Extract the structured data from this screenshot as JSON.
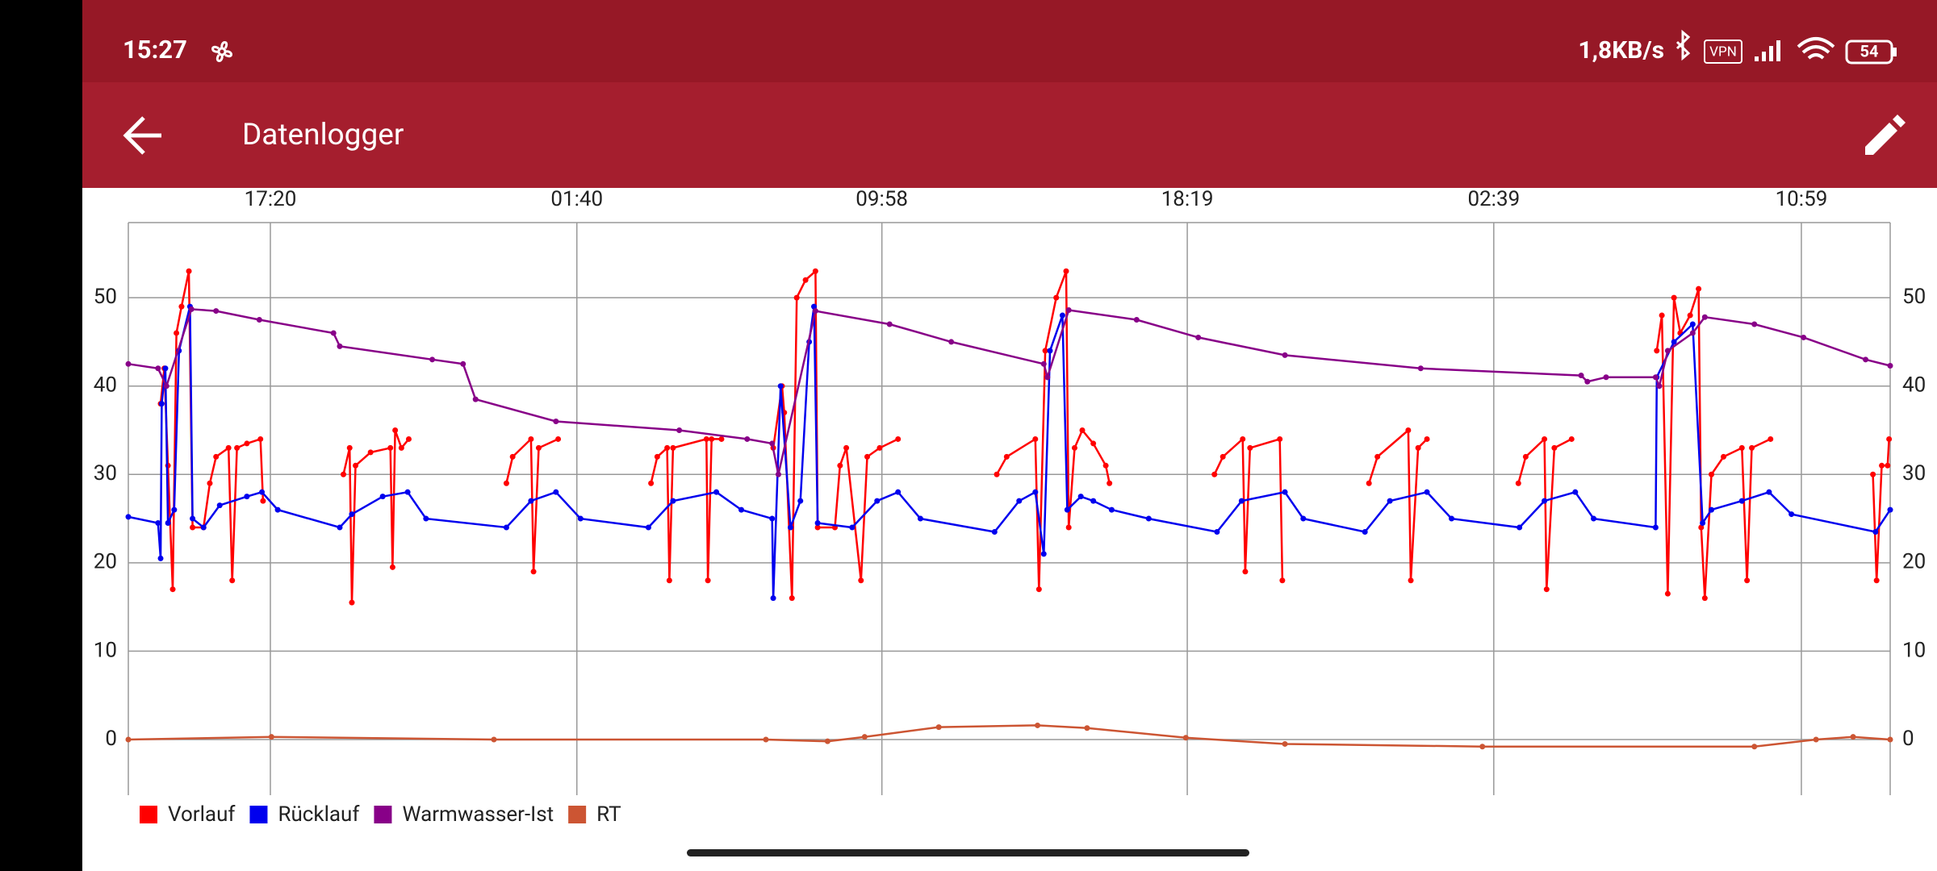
{
  "status_bar": {
    "time": "15:27",
    "speed": "1,8KB/s",
    "vpn": "VPN",
    "battery": "54"
  },
  "app_bar": {
    "title": "Datenlogger"
  },
  "chart_data": {
    "type": "line",
    "grid": true,
    "legend": "bottom-left",
    "xlim": [
      0,
      48
    ],
    "ylim": [
      -6.3,
      58.5
    ],
    "xticks": [
      {
        "value": 3.87,
        "label": "17:20"
      },
      {
        "value": 12.22,
        "label": "01:40"
      },
      {
        "value": 20.53,
        "label": "09:58"
      },
      {
        "value": 28.85,
        "label": "18:19"
      },
      {
        "value": 37.2,
        "label": "02:39"
      },
      {
        "value": 45.58,
        "label": "10:59"
      }
    ],
    "yticks": [
      0,
      10,
      20,
      30,
      40,
      50
    ],
    "series": [
      {
        "name": "Vorlauf",
        "color": "#ff0000",
        "x": [
          0.88,
          0.98,
          1.08,
          1.21,
          1.31,
          1.45,
          1.65,
          1.75,
          2.05,
          2.22,
          2.39,
          2.73,
          2.83,
          2.96,
          3.23,
          3.6,
          3.67,
          null,
          5.86,
          6.03,
          6.09,
          6.19,
          6.6,
          7.14,
          7.2,
          7.27,
          7.44,
          7.64,
          null,
          10.3,
          10.47,
          10.97,
          11.04,
          11.18,
          11.71,
          null,
          14.24,
          14.41,
          14.68,
          14.74,
          14.84,
          15.75,
          15.79,
          15.89,
          16.16,
          null,
          17.57,
          17.81,
          17.87,
          18.08,
          18.21,
          18.45,
          18.72,
          18.78,
          19.25,
          19.39,
          19.56,
          19.96,
          20.13,
          20.47,
          20.97,
          null,
          23.66,
          23.93,
          24.71,
          24.81,
          24.98,
          25.28,
          25.55,
          25.62,
          25.78,
          25.99,
          26.29,
          26.63,
          26.73,
          null,
          29.59,
          29.82,
          30.36,
          30.43,
          30.56,
          31.37,
          31.44,
          null,
          33.8,
          34.03,
          34.87,
          34.94,
          35.14,
          35.38,
          null,
          37.87,
          38.07,
          38.58,
          38.64,
          38.85,
          39.32,
          null,
          41.64,
          41.78,
          41.94,
          42.11,
          42.28,
          42.55,
          42.78,
          42.85,
          42.95,
          43.13,
          43.46,
          43.96,
          44.1,
          44.23,
          44.74,
          null,
          47.53,
          47.63,
          47.77,
          47.93,
          47.97
        ],
        "values": [
          38,
          42,
          31,
          17,
          46,
          49,
          53,
          24,
          24,
          29,
          32,
          33,
          18,
          33,
          33.5,
          34,
          27,
          null,
          30,
          33,
          15.5,
          31,
          32.5,
          33,
          19.5,
          35,
          33,
          34,
          null,
          29,
          32,
          34,
          19,
          33,
          34,
          null,
          29,
          32,
          33,
          18,
          33,
          34,
          18,
          34,
          34,
          null,
          33,
          40,
          37,
          16,
          50,
          52,
          53,
          24,
          24,
          31,
          33,
          18,
          32,
          33,
          34,
          null,
          30,
          32,
          34,
          17,
          44,
          50,
          53,
          24,
          33,
          35,
          33.5,
          31,
          29,
          null,
          30,
          32,
          34,
          19,
          33,
          34,
          18,
          null,
          29,
          32,
          35,
          18,
          33,
          34,
          null,
          29,
          32,
          34,
          17,
          33,
          34,
          null,
          44,
          48,
          16.5,
          50,
          46,
          48,
          51,
          24,
          16,
          30,
          32,
          33,
          18,
          33,
          34,
          null,
          30,
          18,
          31,
          31,
          34
        ]
      },
      {
        "name": "Rücklauf",
        "color": "#0000ee",
        "x": [
          0,
          0.81,
          0.88,
          0.91,
          1.01,
          1.08,
          1.25,
          1.38,
          1.68,
          1.75,
          2.05,
          2.49,
          3.23,
          3.64,
          4.07,
          5.76,
          6.09,
          6.93,
          7.61,
          8.11,
          10.3,
          10.97,
          11.65,
          12.32,
          14.17,
          14.84,
          16.02,
          16.7,
          17.54,
          17.57,
          17.77,
          18.04,
          18.31,
          18.55,
          18.68,
          18.78,
          19.72,
          20.4,
          20.97,
          21.58,
          23.6,
          24.27,
          24.71,
          24.94,
          25.11,
          25.45,
          25.58,
          25.95,
          26.29,
          26.79,
          27.8,
          29.66,
          30.33,
          31.51,
          32.01,
          33.69,
          34.37,
          35.38,
          36.05,
          37.9,
          38.58,
          39.42,
          39.92,
          41.61,
          41.64,
          42.11,
          42.62,
          42.89,
          43.13,
          43.96,
          44.7,
          45.31,
          47.6,
          48
        ],
        "values": [
          25.2,
          24.5,
          20.5,
          38,
          42,
          24.5,
          26,
          44,
          49,
          25,
          24,
          26.5,
          27.5,
          28,
          26,
          24,
          25.5,
          27.5,
          28,
          25,
          24,
          27,
          28,
          25,
          24,
          27,
          28,
          26,
          25,
          16,
          40,
          24,
          27,
          45,
          49,
          24.5,
          24,
          27,
          28,
          25,
          23.5,
          27,
          28,
          21,
          44,
          48,
          26,
          27.5,
          27,
          26,
          25,
          23.5,
          27,
          28,
          25,
          23.5,
          27,
          28,
          25,
          24,
          27,
          28,
          25,
          24,
          41,
          45,
          47,
          24.5,
          26,
          27,
          28,
          25.5,
          23.5,
          26
        ]
      },
      {
        "name": "Warmwasser-Ist",
        "color": "#880088",
        "x": [
          0,
          0.81,
          1.04,
          1.72,
          2.39,
          3.57,
          5.59,
          5.76,
          8.28,
          9.12,
          9.46,
          11.65,
          15.01,
          16.86,
          17.54,
          17.71,
          18.72,
          20.74,
          22.42,
          24.94,
          25.04,
          25.62,
          27.47,
          29.15,
          31.51,
          35.21,
          39.58,
          39.75,
          40.26,
          41.61,
          41.71,
          41.94,
          42.62,
          42.95,
          44.3,
          45.64,
          47.33,
          48
        ],
        "values": [
          42.5,
          42,
          40,
          48.7,
          48.5,
          47.5,
          46,
          44.5,
          43,
          42.5,
          38.5,
          36,
          35,
          34,
          33.5,
          30,
          48.5,
          47,
          45,
          42.5,
          41,
          48.6,
          47.5,
          45.5,
          43.5,
          42,
          41.2,
          40.5,
          41,
          41,
          40,
          44,
          46,
          47.8,
          47,
          45.5,
          43,
          42.3
        ]
      },
      {
        "name": "RT",
        "color": "#cc5533",
        "x": [
          0,
          3.9,
          9.96,
          17.37,
          19.05,
          20.06,
          22.08,
          24.77,
          26.12,
          28.81,
          31.51,
          36.89,
          44.3,
          45.98,
          46.99,
          48
        ],
        "values": [
          0,
          0.3,
          0,
          0,
          -0.2,
          0.3,
          1.4,
          1.6,
          1.3,
          0.2,
          -0.5,
          -0.8,
          -0.8,
          0,
          0.3,
          0
        ]
      }
    ]
  }
}
